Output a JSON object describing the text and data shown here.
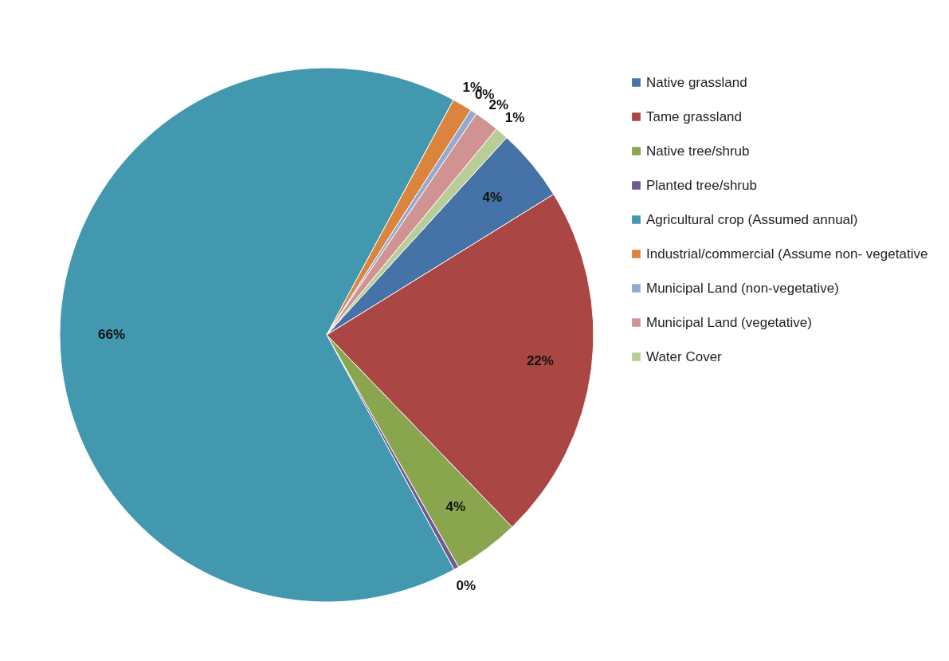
{
  "chart_data": {
    "type": "pie",
    "categories": [
      "Native grassland",
      "Tame grassland",
      "Native tree/shrub",
      "Planted tree/shrub",
      "Agricultural crop (Assumed annual)",
      "Industrial/commercial (Assume non- vegetative",
      "Municipal Land (non-vegetative)",
      "Municipal Land (vegetative)",
      "Water Cover"
    ],
    "values": [
      4.4,
      21.6,
      4.0,
      0.3,
      65.8,
      1.2,
      0.4,
      1.5,
      0.8
    ],
    "colors": [
      "#4572a7",
      "#aa4643",
      "#89a54e",
      "#71588f",
      "#4198af",
      "#db843d",
      "#93a9cf",
      "#d19392",
      "#b9cd96"
    ],
    "value_labels": [
      "4%",
      "22%",
      "4%",
      "0%",
      "66%",
      "1%",
      "0%",
      "2%",
      "1%"
    ],
    "legend": "right"
  }
}
